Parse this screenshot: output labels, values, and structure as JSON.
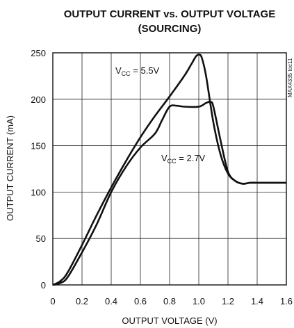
{
  "chart_data": {
    "type": "line",
    "title_line1": "OUTPUT CURRENT vs. OUTPUT VOLTAGE",
    "title_line2": "(SOURCING)",
    "xlabel": "OUTPUT VOLTAGE (V)",
    "ylabel": "OUTPUT CURRENT (mA)",
    "xlim": [
      0,
      1.6
    ],
    "ylim": [
      0,
      250
    ],
    "xticks": [
      0,
      0.2,
      0.4,
      0.6,
      0.8,
      1.0,
      1.2,
      1.4,
      1.6
    ],
    "xtick_labels": [
      "0",
      "0.2",
      "0.4",
      "0.6",
      "0.8",
      "1.0",
      "1.2",
      "1.4",
      "1.6"
    ],
    "yticks": [
      0,
      50,
      100,
      150,
      200,
      250
    ],
    "ytick_labels": [
      "0",
      "50",
      "100",
      "150",
      "200",
      "250"
    ],
    "grid": true,
    "figure_code": "MAX4335 toc11",
    "series": [
      {
        "name": "VCC = 5.5V",
        "label_prefix": "V",
        "label_sub": "CC",
        "label_suffix": " = 5.5V",
        "x": [
          0,
          0.05,
          0.1,
          0.2,
          0.3,
          0.4,
          0.5,
          0.6,
          0.7,
          0.8,
          0.9,
          0.95,
          0.98,
          1.0,
          1.02,
          1.05,
          1.1,
          1.15,
          1.2,
          1.25,
          1.3,
          1.35,
          1.4,
          1.5,
          1.6
        ],
        "y": [
          0,
          4,
          13,
          43,
          75,
          105,
          133,
          159,
          182,
          203,
          225,
          238,
          246,
          248,
          245,
          225,
          175,
          140,
          120,
          112,
          109,
          110,
          110,
          110,
          110
        ]
      },
      {
        "name": "VCC = 2.7V",
        "label_prefix": "V",
        "label_sub": "CC",
        "label_suffix": " = 2.7V",
        "x": [
          0,
          0.05,
          0.1,
          0.2,
          0.3,
          0.4,
          0.5,
          0.6,
          0.7,
          0.75,
          0.8,
          0.85,
          0.9,
          1.0,
          1.05,
          1.08,
          1.1,
          1.15,
          1.2,
          1.25,
          1.3,
          1.35,
          1.4,
          1.5,
          1.6
        ],
        "y": [
          0,
          2,
          8,
          35,
          65,
          100,
          127,
          148,
          163,
          178,
          192,
          193,
          192,
          192,
          196,
          197,
          192,
          155,
          122,
          112,
          109,
          110,
          110,
          110,
          110
        ]
      }
    ]
  }
}
